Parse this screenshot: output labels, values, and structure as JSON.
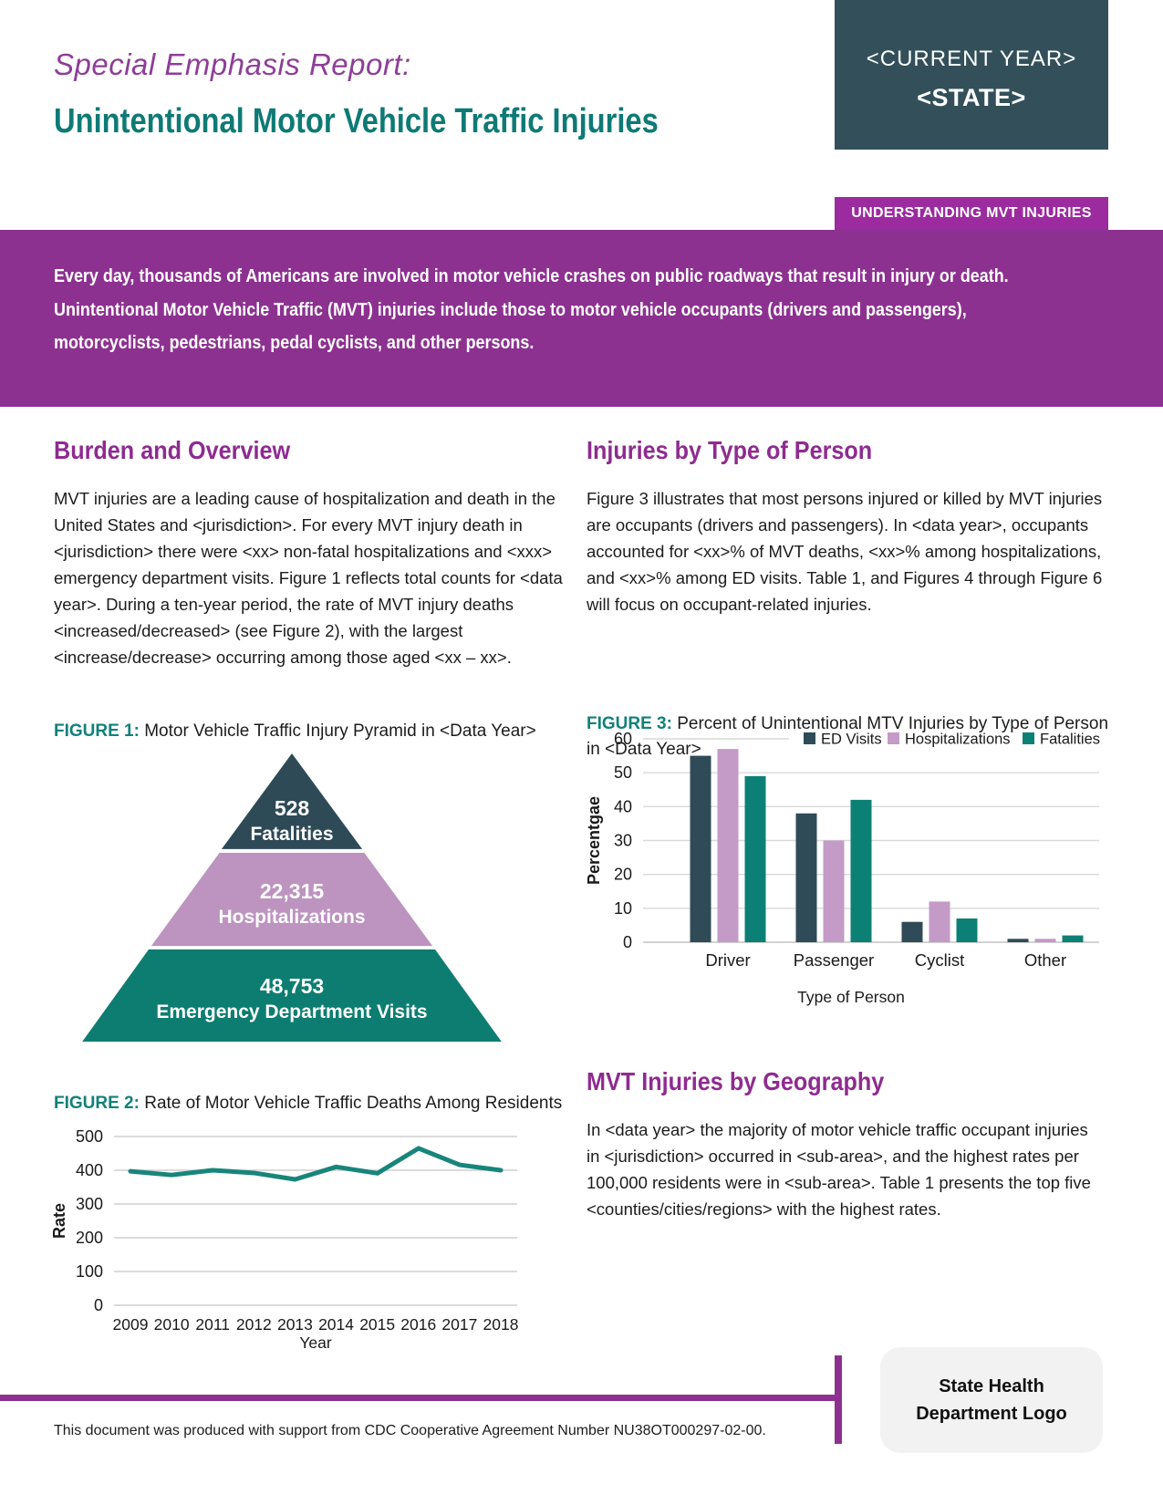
{
  "header": {
    "kicker": "Special Emphasis Report:",
    "title": "Unintentional Motor Vehicle Traffic Injuries",
    "year_box": {
      "line1": "<CURRENT YEAR>",
      "line2": "<STATE>"
    },
    "tag": "UNDERSTANDING MVT INJURIES"
  },
  "banner": {
    "text": "Every day, thousands of Americans are involved in motor vehicle crashes on public roadways that result in injury or death. Unintentional Motor Vehicle Traffic (MVT) injuries include those to motor vehicle occupants (drivers and passengers), motorcyclists, pedestrians, pedal cyclists, and other persons."
  },
  "sections": {
    "burden": {
      "heading": "Burden and Overview",
      "body": "MVT injuries are a leading cause of hospitalization and death in the United States and <jurisdiction>. For every MVT injury death in <jurisdiction> there were <xx> non-fatal hospitalizations and <xxx> emergency department visits. Figure 1 reflects total counts for <data year>. During a ten-year period, the rate of MVT injury deaths <increased/decreased> (see Figure 2), with the largest <increase/decrease> occurring among those aged <xx – xx>."
    },
    "type_of_person": {
      "heading": "Injuries by Type of Person",
      "body": "Figure 3 illustrates that most persons injured or killed by MVT injuries are occupants (drivers and passengers). In <data year>, occupants accounted for <xx>% of MVT deaths, <xx>% among hospitalizations, and <xx>% among ED visits. Table 1, and Figures 4 through Figure 6 will focus on occupant-related injuries."
    },
    "geography": {
      "heading": "MVT Injuries by Geography",
      "body": "In <data year> the majority of motor vehicle traffic occupant injuries in <jurisdiction> occurred in <sub-area>, and the highest rates per 100,000 residents were in <sub-area>. Table 1 presents the top five <counties/cities/regions> with the highest rates."
    }
  },
  "figure1": {
    "label": "FIGURE 1:",
    "caption": " Motor Vehicle Traffic Injury Pyramid in <Data Year>",
    "pyramid": [
      {
        "value": "528",
        "label": "Fatalities",
        "color": "#2e4a57"
      },
      {
        "value": "22,315",
        "label": "Hospitalizations",
        "color": "#bd93c0"
      },
      {
        "value": "48,753",
        "label": "Emergency Department Visits",
        "color": "#0d7d71"
      }
    ]
  },
  "figure2": {
    "label": "FIGURE 2:",
    "caption": " Rate of Motor Vehicle Traffic Deaths Among Residents"
  },
  "figure3": {
    "label": "FIGURE 3:",
    "caption": " Percent of Unintentional MTV Injuries by Type of Person in <Data Year>"
  },
  "footer": {
    "note": "This document was produced with support from CDC Cooperative Agreement Number NU38OT000297-02-00.",
    "logo_line1": "State Health",
    "logo_line2": "Department Logo"
  },
  "colors": {
    "purple": "#8d3191",
    "tag_purple": "#9b2b9e",
    "teal": "#0e7a75",
    "dark_slate": "#2e4a57",
    "mauve": "#bd93c0"
  },
  "chart_data": [
    {
      "id": "figure2-line",
      "type": "line",
      "title": "Rate of Motor Vehicle Traffic Deaths Among Residents",
      "x": [
        2009,
        2010,
        2011,
        2012,
        2013,
        2014,
        2015,
        2016,
        2017,
        2018
      ],
      "values": [
        397,
        386,
        400,
        392,
        373,
        410,
        391,
        465,
        416,
        400
      ],
      "xlabel": "Year",
      "ylabel": "Rate",
      "ylim": [
        0,
        500
      ],
      "ytick_step": 100,
      "grid": true,
      "line_color": "#18857b"
    },
    {
      "id": "figure3-bar",
      "type": "bar",
      "title": "Percent of Unintentional MTV Injuries by Type of Person in <Data Year>",
      "categories": [
        "Driver",
        "Passenger",
        "Cyclist",
        "Other"
      ],
      "series": [
        {
          "name": "ED Visits",
          "color": "#2f4b58",
          "values": [
            55,
            38,
            6,
            1
          ]
        },
        {
          "name": "Hospitalizations",
          "color": "#c49ac7",
          "values": [
            57,
            30,
            12,
            1
          ]
        },
        {
          "name": "Fatalities",
          "color": "#0d8076",
          "values": [
            49,
            42,
            7,
            2
          ]
        }
      ],
      "xlabel": "Type of Person",
      "ylabel": "Percentgae",
      "ylim": [
        0,
        60
      ],
      "ytick_step": 10,
      "grid": true,
      "legend_position": "top"
    }
  ]
}
